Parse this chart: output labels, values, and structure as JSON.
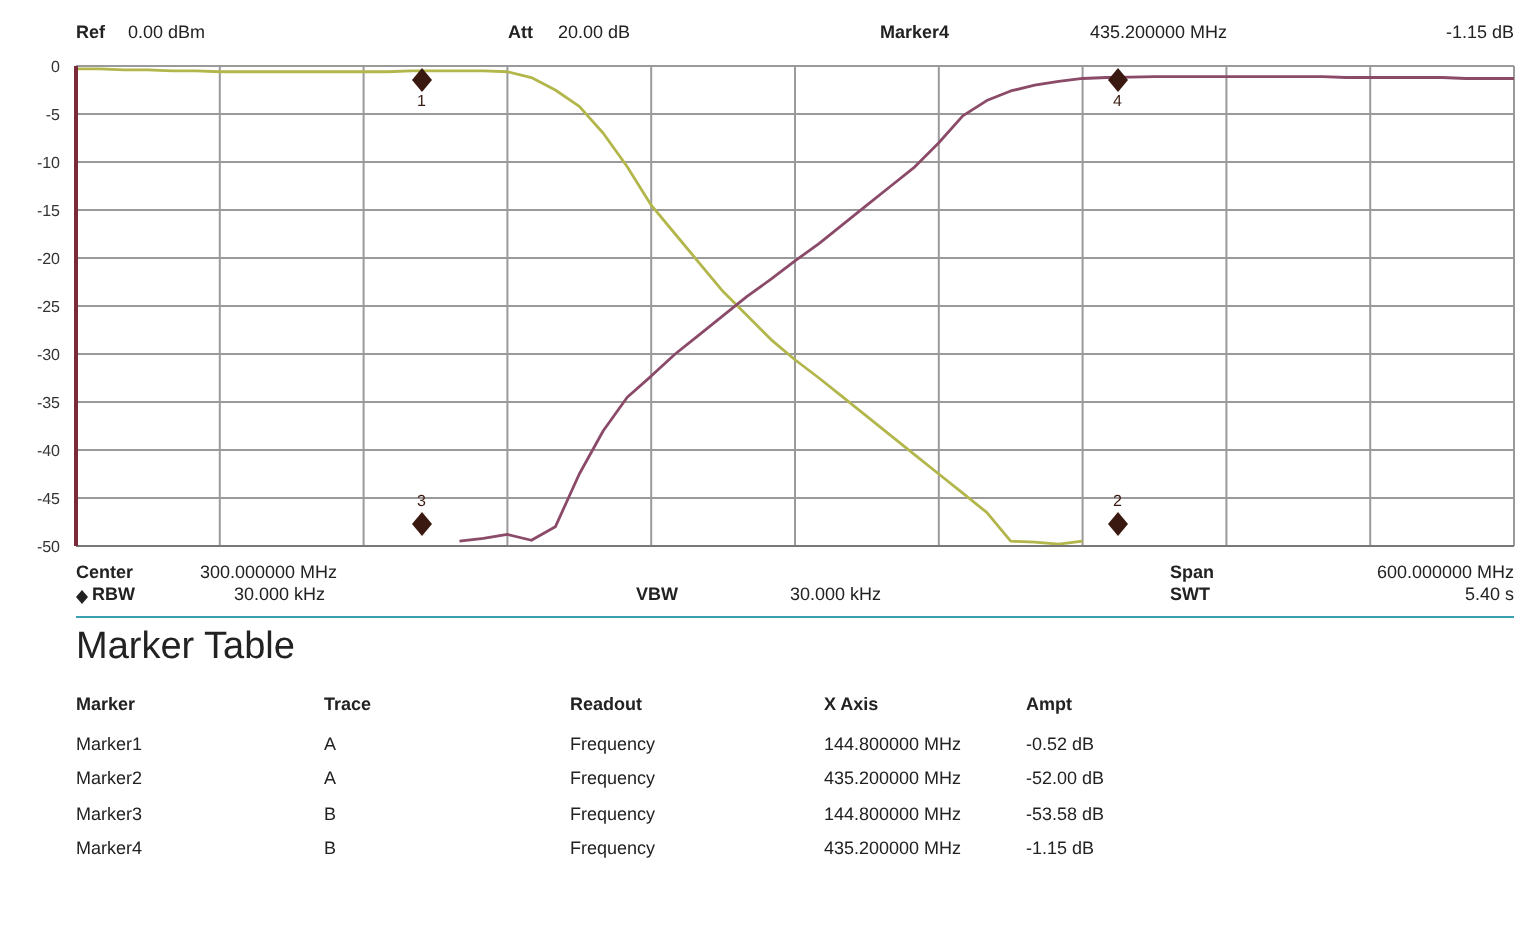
{
  "chart_data": {
    "type": "line",
    "annotations": [
      "Ref",
      "0.00 dBm",
      "Att",
      "20.00 dB",
      "Marker4",
      "435.200000 MHz",
      "-1.15 dB",
      "Center",
      "300.000000 MHz",
      "Span",
      "600.000000 MHz",
      "RBW",
      "30.000 kHz",
      "VBW",
      "30.000 kHz",
      "SWT",
      "5.40 s",
      "Marker Table",
      "Marker",
      "Trace",
      "Readout",
      "X Axis",
      "Ampt",
      "Marker1",
      "A",
      "Frequency",
      "144.800000 MHz",
      "-0.52 dB",
      "Marker2",
      "A",
      "Frequency",
      "435.200000 MHz",
      "-52.00 dB",
      "Marker3",
      "B",
      "Frequency",
      "144.800000 MHz",
      "-53.58 dB",
      "Marker4",
      "B",
      "Frequency",
      "435.200000 MHz",
      "-1.15 dB",
      "1",
      "2",
      "3",
      "4"
    ],
    "categories": [
      null,
      null,
      null,
      null,
      null,
      null,
      null,
      null,
      null,
      null,
      null,
      null,
      null,
      null,
      null,
      null,
      null,
      null,
      null,
      null,
      null,
      null,
      null,
      null,
      null,
      null,
      null,
      null,
      null,
      null,
      null,
      null,
      null,
      null,
      null,
      null,
      null,
      null,
      null,
      null,
      null,
      null,
      null,
      null,
      null,
      null,
      null,
      null,
      null,
      null,
      null,
      null,
      null,
      null,
      null,
      null,
      null,
      null,
      null,
      null,
      null
    ],
    "ylim": [
      -50,
      0
    ],
    "yticks": [
      0,
      -5,
      -10,
      -15,
      -20,
      -25,
      -30,
      -35,
      -40,
      -45,
      -50
    ],
    "tick_labels": "y",
    "grid": true,
    "line_style": "solid",
    "series": [
      {
        "color": "#b3b64a",
        "values": [
          -0.3,
          -0.3,
          -0.4,
          -0.4,
          -0.5,
          -0.5,
          -0.6,
          -0.6,
          -0.6,
          -0.6,
          -0.6,
          -0.6,
          -0.6,
          -0.6,
          -0.5,
          -0.5,
          -0.5,
          -0.5,
          -0.6,
          -1.2,
          -2.5,
          -4.2,
          -7,
          -10.5,
          -14.5,
          -17.5,
          -20.5,
          -23.5,
          -26,
          -28.5,
          -30.6,
          -32.5,
          -34.5,
          -36.5,
          -38.5,
          -40.5,
          -42.5,
          -44.5,
          -46.5,
          -49.5,
          -49.6,
          -49.8,
          -49.5,
          null,
          null,
          null,
          null,
          null,
          null,
          null,
          null,
          null,
          null,
          null,
          null,
          null,
          null,
          null,
          null,
          null,
          null
        ]
      },
      {
        "color": "#8a4a68",
        "values": [
          null,
          null,
          null,
          null,
          null,
          null,
          null,
          null,
          null,
          null,
          null,
          null,
          null,
          null,
          null,
          null,
          -49.5,
          -49.2,
          -48.8,
          -49.4,
          -48,
          -42.5,
          -38,
          -34.5,
          -32.3,
          -30,
          -28,
          -26,
          -24,
          -22.2,
          -20.3,
          -18.5,
          -16.5,
          -14.5,
          -12.5,
          -10.5,
          -8,
          -5.2,
          -3.6,
          -2.6,
          -2,
          -1.6,
          -1.3,
          -1.2,
          -1.15,
          -1.1,
          -1.1,
          -1.1,
          -1.1,
          -1.1,
          -1.1,
          -1.1,
          -1.1,
          -1.2,
          -1.2,
          -1.2,
          -1.2,
          -1.2,
          -1.3,
          -1.3,
          -1.3
        ]
      }
    ]
  }
}
